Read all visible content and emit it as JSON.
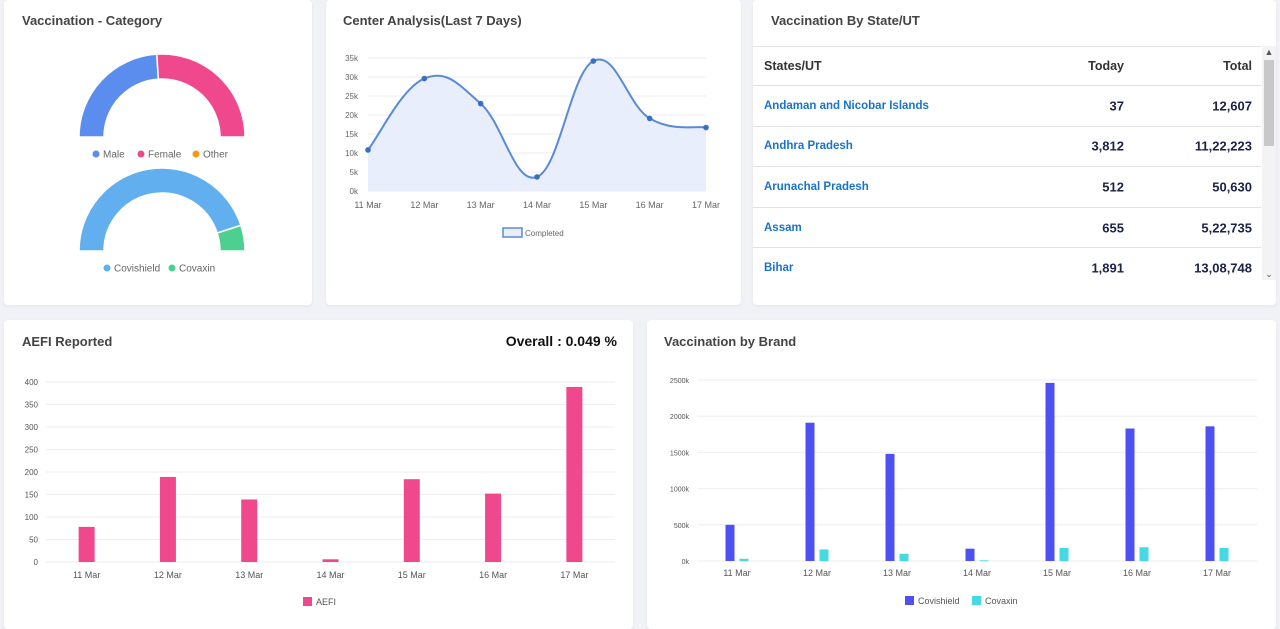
{
  "cards": {
    "vaccination_category": {
      "title": "Vaccination - Category"
    },
    "center_analysis": {
      "title": "Center Analysis(Last 7 Days)"
    },
    "by_state": {
      "title": "Vaccination By State/UT"
    },
    "aefi": {
      "title": "AEFI Reported",
      "overall": "Overall : 0.049 %"
    },
    "by_brand": {
      "title": "Vaccination by Brand"
    }
  },
  "state_table": {
    "headers": {
      "state": "States/UT",
      "today": "Today",
      "total": "Total"
    },
    "rows": [
      {
        "state": "Andaman and Nicobar Islands",
        "today": "37",
        "total": "12,607"
      },
      {
        "state": "Andhra Pradesh",
        "today": "3,812",
        "total": "11,22,223"
      },
      {
        "state": "Arunachal Pradesh",
        "today": "512",
        "total": "50,630"
      },
      {
        "state": "Assam",
        "today": "655",
        "total": "5,22,735"
      },
      {
        "state": "Bihar",
        "today": "1,891",
        "total": "13,08,748"
      }
    ],
    "scroll_up_glyph": "▲",
    "scroll_down_glyph": "⌄"
  },
  "colors": {
    "male": "#5b8def",
    "female": "#f0488c",
    "other": "#f39c12",
    "covishield_donut": "#62aff0",
    "covaxin_donut": "#4dd08f",
    "line": "#5a8ad6",
    "line_fill": "#e8eefb",
    "aefi_bar": "#f0488c",
    "brand_covishield": "#4f50f2",
    "brand_covaxin": "#45d9e4"
  },
  "chart_data": [
    {
      "id": "gender",
      "type": "pie",
      "title": "Vaccination - Category",
      "labels": [
        "Male",
        "Female",
        "Other"
      ],
      "values": [
        48,
        52,
        0
      ]
    },
    {
      "id": "vaccine_type",
      "type": "pie",
      "labels": [
        "Covishield",
        "Covaxin"
      ],
      "values": [
        90,
        10
      ]
    },
    {
      "id": "center_analysis",
      "type": "area",
      "title": "Center Analysis(Last 7 Days)",
      "categories": [
        "11 Mar",
        "12 Mar",
        "13 Mar",
        "14 Mar",
        "15 Mar",
        "16 Mar",
        "17 Mar"
      ],
      "series": [
        {
          "name": "Completed",
          "values": [
            10800,
            29600,
            23000,
            3700,
            34200,
            19100,
            16700
          ]
        }
      ],
      "ylim": [
        0,
        35000
      ],
      "yticks": [
        0,
        5000,
        10000,
        15000,
        20000,
        25000,
        30000,
        35000
      ],
      "ytick_labels": [
        "0k",
        "5k",
        "10k",
        "15k",
        "20k",
        "25k",
        "30k",
        "35k"
      ]
    },
    {
      "id": "aefi",
      "type": "bar",
      "title": "AEFI Reported",
      "categories": [
        "11 Mar",
        "12 Mar",
        "13 Mar",
        "14 Mar",
        "15 Mar",
        "16 Mar",
        "17 Mar"
      ],
      "series": [
        {
          "name": "AEFI",
          "values": [
            78,
            189,
            139,
            6,
            184,
            152,
            389
          ]
        }
      ],
      "ylim": [
        0,
        400
      ],
      "yticks": [
        0,
        50,
        100,
        150,
        200,
        250,
        300,
        350,
        400
      ],
      "ytick_labels": [
        "0",
        "50",
        "100",
        "150",
        "200",
        "250",
        "300",
        "350",
        "400"
      ]
    },
    {
      "id": "brand",
      "type": "bar",
      "title": "Vaccination by Brand",
      "categories": [
        "11 Mar",
        "12 Mar",
        "13 Mar",
        "14 Mar",
        "15 Mar",
        "16 Mar",
        "17 Mar"
      ],
      "series": [
        {
          "name": "Covishield",
          "values": [
            500000,
            1910000,
            1480000,
            170000,
            2460000,
            1830000,
            1860000
          ]
        },
        {
          "name": "Covaxin",
          "values": [
            30000,
            160000,
            100000,
            10000,
            180000,
            190000,
            180000
          ]
        }
      ],
      "ylim": [
        0,
        2500000
      ],
      "yticks": [
        0,
        500000,
        1000000,
        1500000,
        2000000,
        2500000
      ],
      "ytick_labels": [
        "0k",
        "500k",
        "1000k",
        "1500k",
        "2000k",
        "2500k"
      ]
    }
  ]
}
